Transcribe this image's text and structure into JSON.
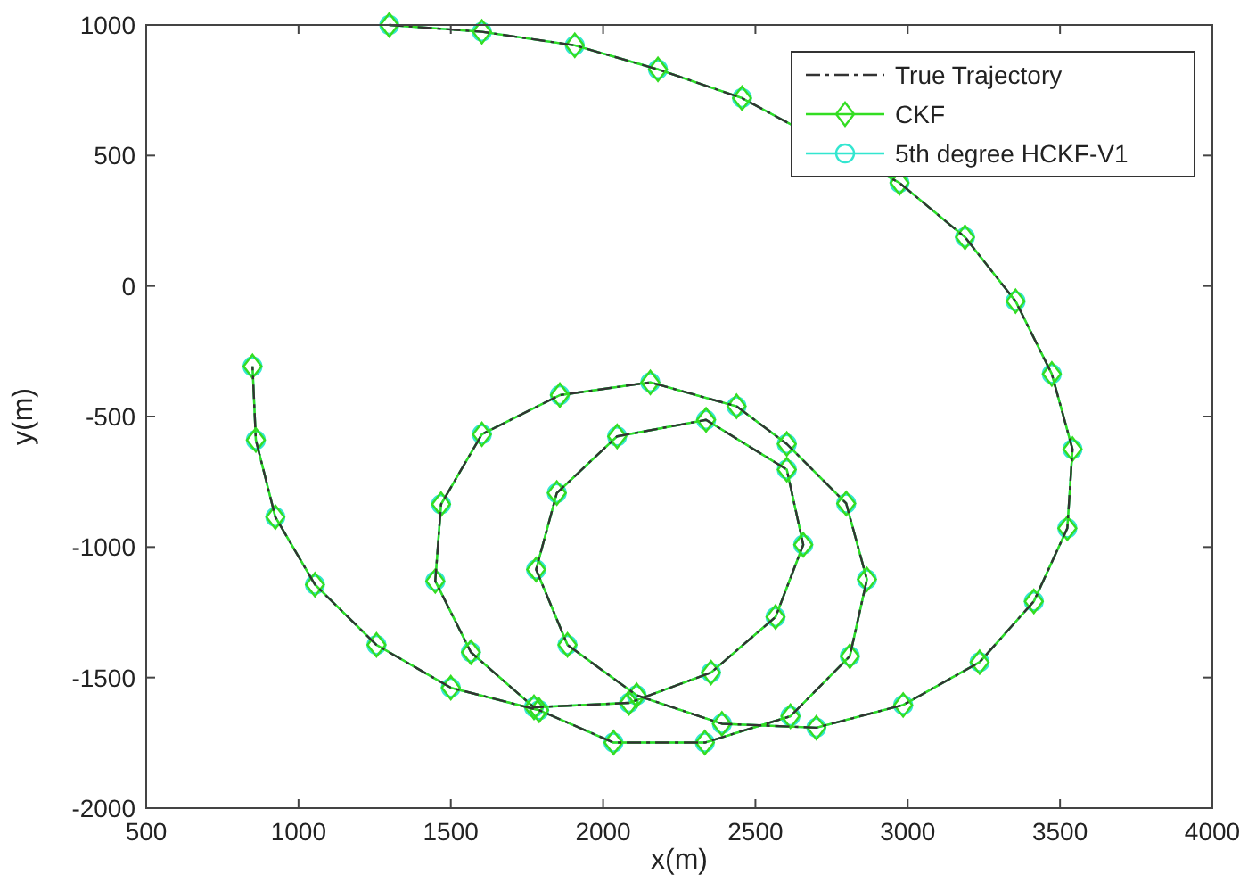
{
  "chart_data": {
    "type": "line",
    "xlabel": "x(m)",
    "ylabel": "y(m)",
    "xlim": [
      500,
      4000
    ],
    "ylim": [
      -2000,
      1000
    ],
    "xticks": [
      500,
      1000,
      1500,
      2000,
      2500,
      3000,
      3500,
      4000
    ],
    "yticks": [
      -2000,
      -1500,
      -1000,
      -500,
      0,
      500,
      1000
    ],
    "grid": false,
    "legend": "top right",
    "x": [
      1298,
      1602,
      1907,
      2180,
      2456,
      2973,
      3188,
      3354,
      3473,
      3541,
      3524,
      3414,
      3236,
      2985,
      2700,
      2390,
      2110,
      1883,
      1780,
      1848,
      2046,
      2338,
      2603,
      2657,
      2566,
      2354,
      2085,
      1773,
      1566,
      1449,
      1468,
      1602,
      1858,
      2155,
      2438,
      2603,
      2798,
      2866,
      2810,
      2615,
      2334,
      2034,
      1790,
      1500,
      1256,
      1054,
      924,
      860,
      849
    ],
    "series": [
      {
        "name": "True Trajectory",
        "color": "#333333",
        "line_style": "dashed",
        "marker": "none",
        "values": [
          1000,
          974,
          922,
          830,
          720,
          395,
          187,
          -58,
          -337,
          -625,
          -928,
          -1208,
          -1441,
          -1605,
          -1692,
          -1677,
          -1568,
          -1375,
          -1086,
          -793,
          -576,
          -513,
          -703,
          -991,
          -1268,
          -1481,
          -1597,
          -1614,
          -1403,
          -1130,
          -836,
          -568,
          -418,
          -369,
          -461,
          -605,
          -833,
          -1124,
          -1418,
          -1648,
          -1749,
          -1749,
          -1625,
          -1539,
          -1375,
          -1144,
          -885,
          -590,
          -308
        ]
      },
      {
        "name": "CKF",
        "color": "#33dd22",
        "line_style": "solid",
        "marker": "diamond",
        "values": [
          1000,
          974,
          922,
          830,
          720,
          395,
          187,
          -58,
          -337,
          -625,
          -928,
          -1208,
          -1441,
          -1605,
          -1692,
          -1677,
          -1568,
          -1375,
          -1086,
          -793,
          -576,
          -513,
          -703,
          -991,
          -1268,
          -1481,
          -1597,
          -1614,
          -1403,
          -1130,
          -836,
          -568,
          -418,
          -369,
          -461,
          -605,
          -833,
          -1124,
          -1418,
          -1648,
          -1749,
          -1749,
          -1625,
          -1539,
          -1375,
          -1144,
          -885,
          -590,
          -308
        ]
      },
      {
        "name": "5th degree HCKF-V1",
        "color": "#33e6d0",
        "line_style": "solid",
        "marker": "circle",
        "values": [
          1000,
          974,
          922,
          830,
          720,
          395,
          187,
          -58,
          -337,
          -625,
          -928,
          -1208,
          -1441,
          -1605,
          -1692,
          -1677,
          -1568,
          -1375,
          -1086,
          -793,
          -576,
          -513,
          -703,
          -991,
          -1268,
          -1481,
          -1597,
          -1614,
          -1403,
          -1130,
          -836,
          -568,
          -418,
          -369,
          -461,
          -605,
          -833,
          -1124,
          -1418,
          -1648,
          -1749,
          -1749,
          -1625,
          -1539,
          -1375,
          -1144,
          -885,
          -590,
          -308
        ]
      }
    ]
  }
}
